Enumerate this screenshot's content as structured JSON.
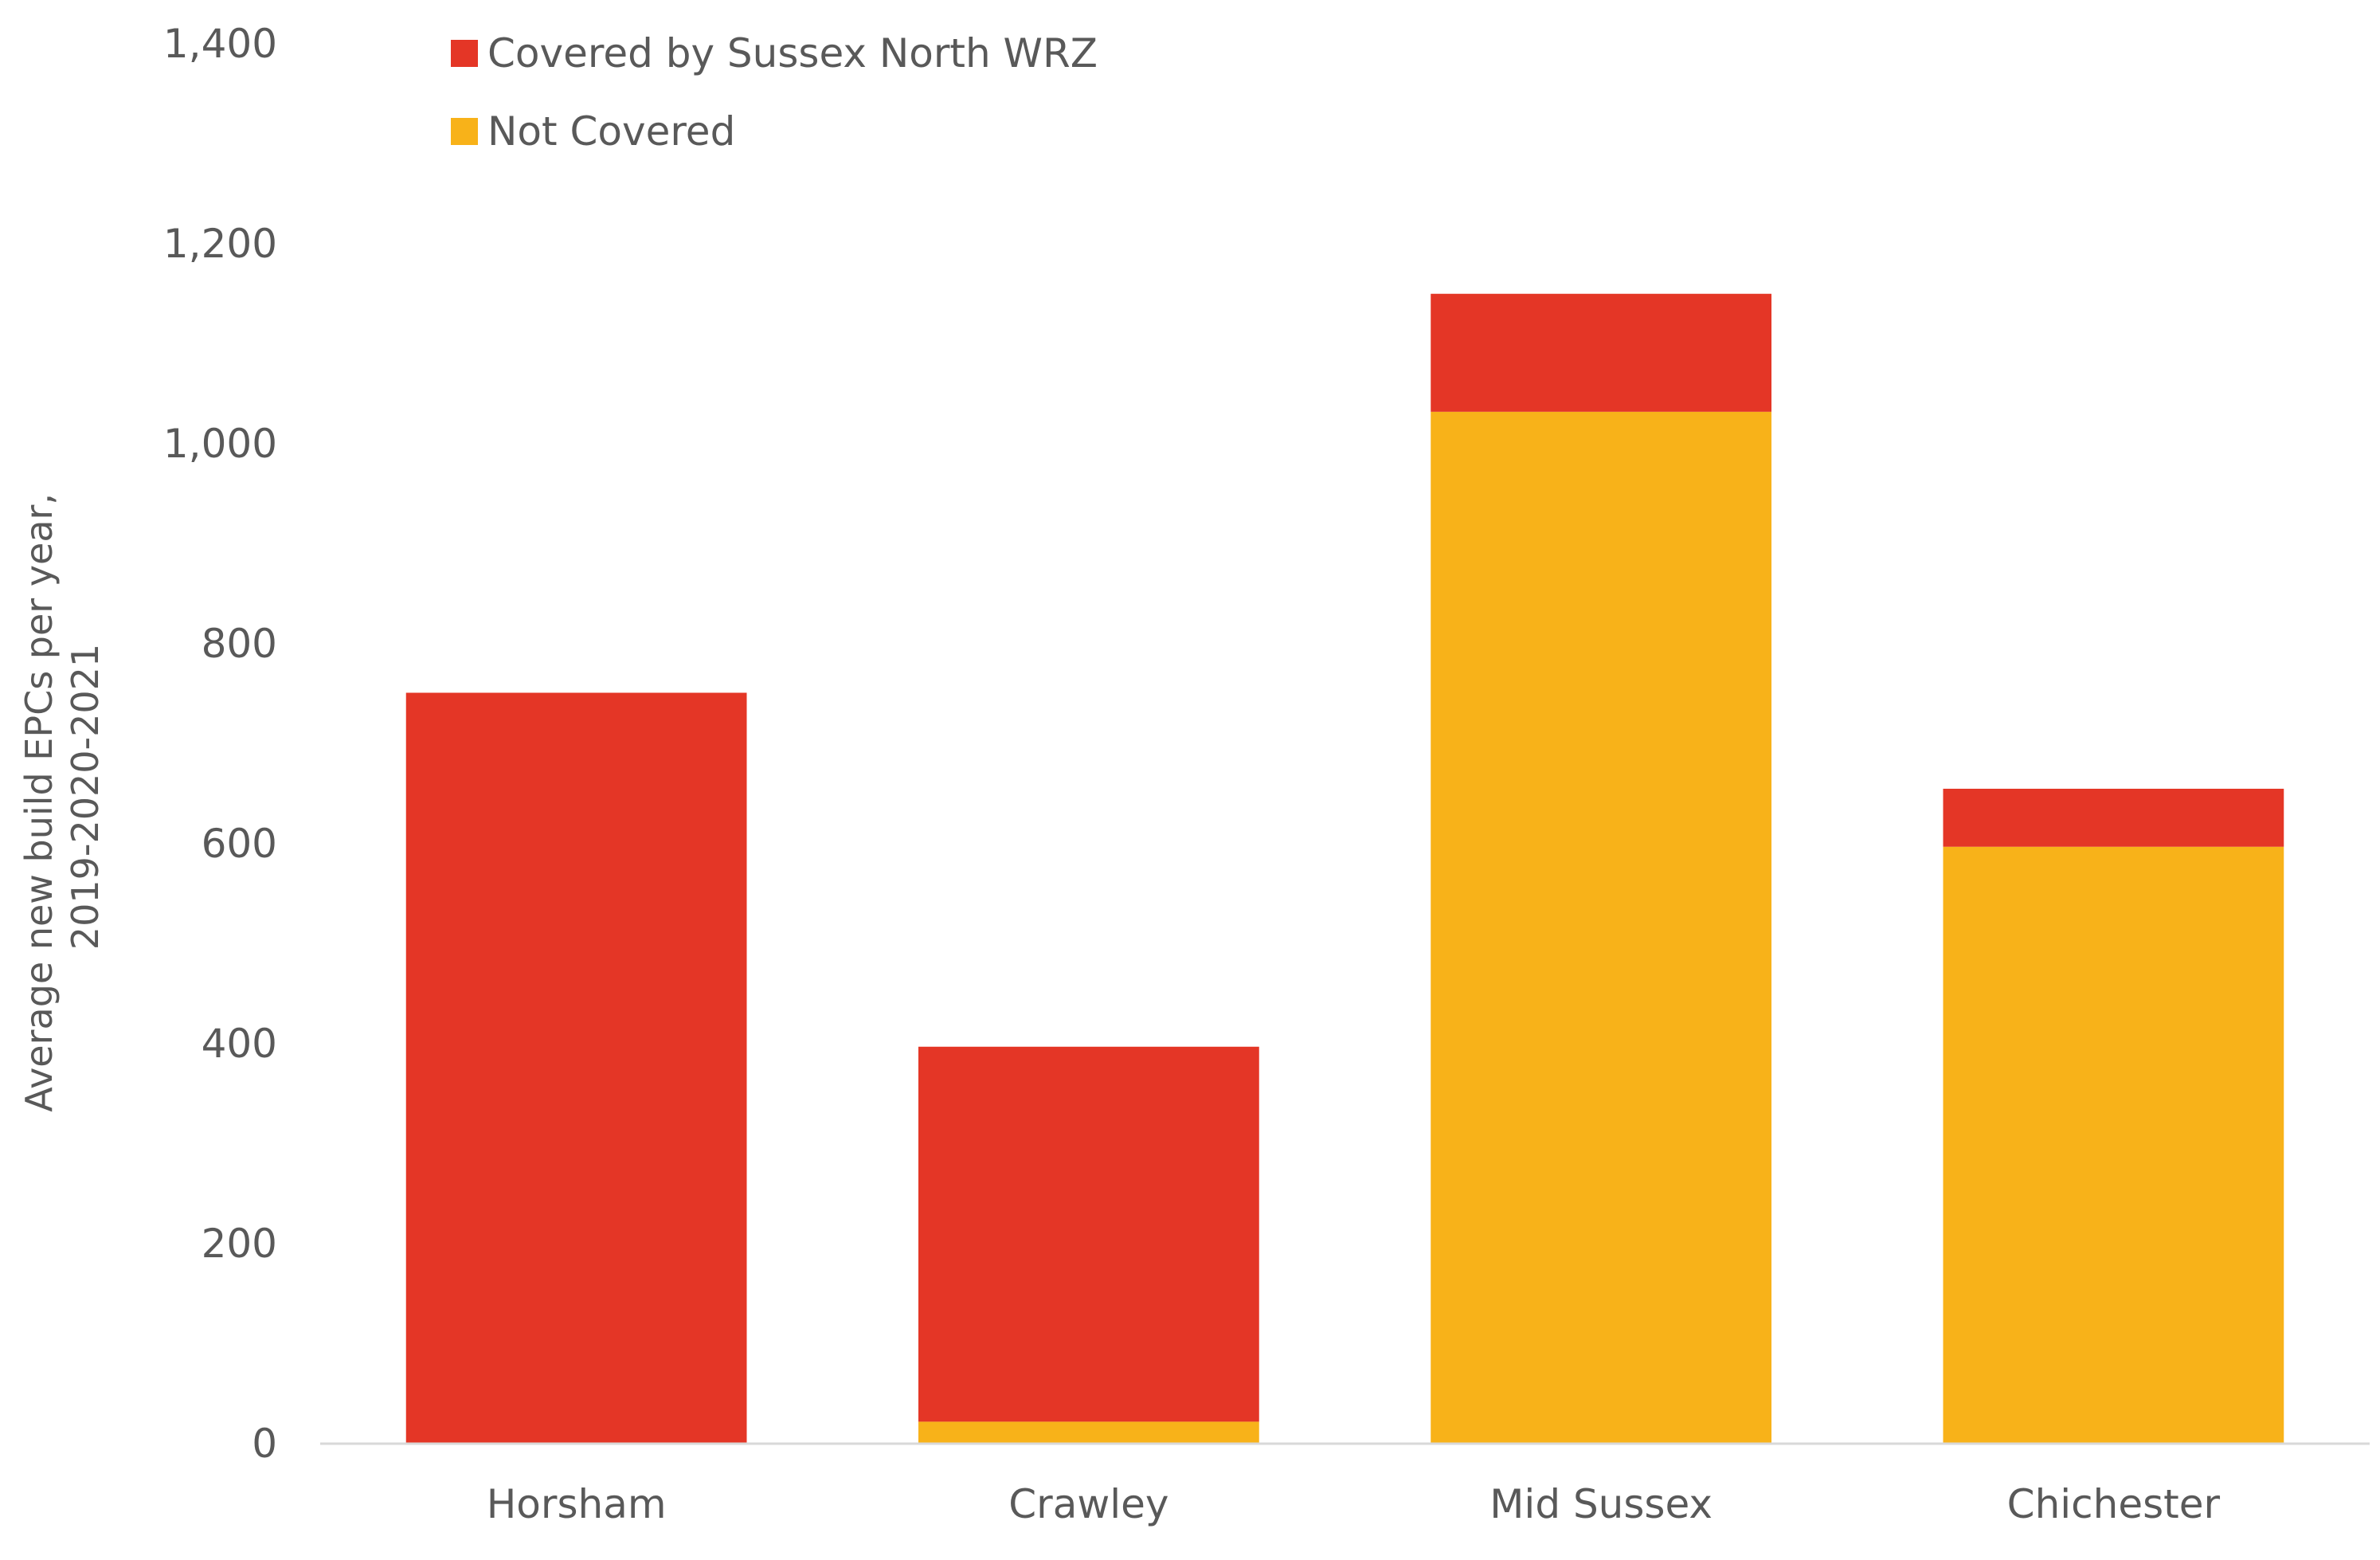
{
  "chart_data": {
    "type": "bar",
    "stacked": true,
    "categories": [
      "Horsham",
      "Crawley",
      "Mid Sussex",
      "Chichester"
    ],
    "series": [
      {
        "name": "Not Covered",
        "values": [
          0,
          22,
          1032,
          597
        ],
        "color": "#F8B219"
      },
      {
        "name": "Covered by Sussex North WRZ",
        "values": [
          751,
          375,
          118,
          58
        ],
        "color": "#E43626"
      }
    ],
    "legend_order": [
      "Covered by Sussex North WRZ",
      "Not Covered"
    ],
    "legend_position": "top-left",
    "ylabel_lines": [
      "Average new build EPCs per year,",
      "2019-2020-2021"
    ],
    "xlabel": "",
    "ylim": [
      0,
      1400
    ],
    "yticks": [
      0,
      200,
      400,
      600,
      800,
      1000,
      1200,
      1400
    ],
    "ytick_labels": [
      "0",
      "200",
      "400",
      "600",
      "800",
      "1,000",
      "1,200",
      "1,400"
    ],
    "grid": false
  }
}
